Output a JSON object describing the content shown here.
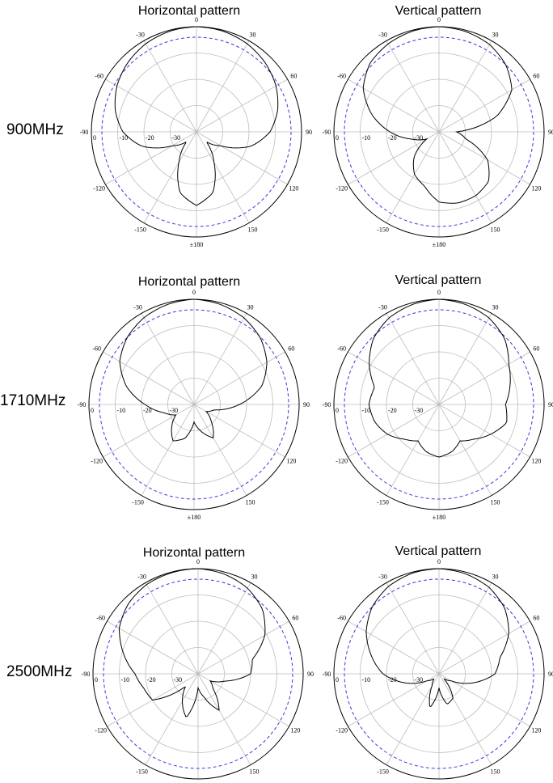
{
  "colors": {
    "pattern_line": "#000000",
    "reference_ring": "#3b3bde",
    "grid": "#bdbdbd"
  },
  "rows": [
    {
      "label": "900MHz"
    },
    {
      "label": "1710MHz"
    },
    {
      "label": "2500MHz"
    }
  ],
  "chart_data": [
    {
      "type": "polar-line",
      "frequency": "900MHz",
      "title": "Horizontal pattern",
      "angle_labels": [
        "0",
        "30",
        "60",
        "90",
        "120",
        "150",
        "±180",
        "-150",
        "-120",
        "-90",
        "-60",
        "-30"
      ],
      "radial_labels": [
        "0",
        "-10",
        "-20",
        "-30"
      ],
      "radial_range_db": [
        -30,
        0
      ],
      "reference_ring_db": -3,
      "series": [
        {
          "angles_deg": [
            0,
            15,
            30,
            45,
            60,
            75,
            90,
            105,
            120,
            135,
            150,
            165,
            180,
            195,
            210,
            225,
            240,
            255,
            270,
            285,
            300,
            315,
            330,
            345
          ],
          "gain_db": [
            0,
            -0.3,
            -1,
            -2.2,
            -3.8,
            -6,
            -9,
            -14,
            -22,
            -26,
            -20,
            -12,
            -9,
            -12,
            -20,
            -26,
            -22,
            -14,
            -9,
            -6,
            -3.8,
            -2.2,
            -1,
            -0.3
          ]
        }
      ]
    },
    {
      "type": "polar-line",
      "frequency": "900MHz",
      "title": "Vertical pattern",
      "angle_labels": [
        "0",
        "30",
        "60",
        "90",
        "120",
        "150",
        "±180",
        "-150",
        "-120",
        "-90",
        "-60",
        "-30"
      ],
      "radial_labels": [
        "0",
        "-10",
        "-20",
        "-30"
      ],
      "radial_range_db": [
        -30,
        0
      ],
      "reference_ring_db": -3,
      "series": [
        {
          "angles_deg": [
            0,
            15,
            30,
            45,
            60,
            75,
            90,
            105,
            120,
            135,
            150,
            165,
            180,
            195,
            210,
            225,
            240,
            255,
            270,
            285,
            300,
            315,
            330,
            345
          ],
          "gain_db": [
            0,
            -0.4,
            -1.2,
            -3,
            -6,
            -13,
            -25,
            -22,
            -14,
            -10,
            -9,
            -9,
            -10,
            -14,
            -16,
            -20,
            -26,
            -22,
            -16,
            -10,
            -5,
            -2.2,
            -1,
            -0.3
          ]
        }
      ]
    },
    {
      "type": "polar-line",
      "frequency": "1710MHz",
      "title": "Horizontal pattern",
      "angle_labels": [
        "0",
        "30",
        "60",
        "90",
        "120",
        "150",
        "±180",
        "-150",
        "-120",
        "-90",
        "-60",
        "-30"
      ],
      "radial_labels": [
        "0",
        "-10",
        "-20",
        "-30"
      ],
      "radial_range_db": [
        -30,
        0
      ],
      "reference_ring_db": -3,
      "series": [
        {
          "angles_deg": [
            0,
            15,
            30,
            45,
            60,
            75,
            90,
            105,
            120,
            135,
            150,
            165,
            180,
            195,
            210,
            225,
            240,
            255,
            270,
            285,
            300,
            315,
            330,
            345
          ],
          "gain_db": [
            0,
            -0.5,
            -1.5,
            -3.2,
            -6,
            -10,
            -17,
            -24,
            -26,
            -23,
            -19,
            -22,
            -25,
            -20,
            -18,
            -21,
            -24,
            -21,
            -16,
            -10,
            -5.5,
            -3,
            -1.4,
            -0.5
          ]
        }
      ]
    },
    {
      "type": "polar-line",
      "frequency": "1710MHz",
      "title": "Vertical pattern",
      "angle_labels": [
        "0",
        "30",
        "60",
        "90",
        "120",
        "150",
        "±180",
        "-150",
        "-120",
        "-90",
        "-60",
        "-30"
      ],
      "radial_labels": [
        "0",
        "-10",
        "-20",
        "-30"
      ],
      "radial_range_db": [
        -30,
        0
      ],
      "reference_ring_db": -3,
      "series": [
        {
          "angles_deg": [
            0,
            15,
            30,
            45,
            60,
            75,
            90,
            105,
            120,
            135,
            150,
            165,
            180,
            195,
            210,
            225,
            240,
            255,
            270,
            285,
            300,
            315,
            330,
            345
          ],
          "gain_db": [
            0,
            -0.5,
            -1.5,
            -3.5,
            -7,
            -9,
            -11,
            -10,
            -13,
            -16,
            -18,
            -16,
            -15,
            -16,
            -18,
            -16,
            -13,
            -11,
            -10,
            -11,
            -7,
            -3.5,
            -1.5,
            -0.5
          ]
        }
      ]
    },
    {
      "type": "polar-line",
      "frequency": "2500MHz",
      "title": "Horizontal pattern",
      "angle_labels": [
        "0",
        "30",
        "60",
        "90",
        "120",
        "150",
        "±180",
        "-150",
        "-120",
        "-90",
        "-60",
        "-30"
      ],
      "radial_labels": [
        "0",
        "-10",
        "-20",
        "-30"
      ],
      "radial_range_db": [
        -30,
        0
      ],
      "reference_ring_db": -3,
      "series": [
        {
          "angles_deg": [
            0,
            15,
            30,
            45,
            60,
            75,
            90,
            105,
            120,
            135,
            150,
            165,
            180,
            195,
            210,
            225,
            240,
            255,
            270,
            285,
            300,
            315,
            330,
            345
          ],
          "gain_db": [
            0,
            -0.6,
            -1.8,
            -4,
            -8,
            -14,
            -15,
            -22,
            -26,
            -24,
            -18,
            -23,
            -26,
            -17,
            -21,
            -25,
            -15,
            -14,
            -12,
            -8,
            -4,
            -1.8,
            -0.6,
            -0.2
          ]
        }
      ]
    },
    {
      "type": "polar-line",
      "frequency": "2500MHz",
      "title": "Vertical pattern",
      "angle_labels": [
        "0",
        "30",
        "60",
        "90",
        "120",
        "150",
        "±180",
        "-150",
        "-120",
        "-90",
        "-60",
        "-30"
      ],
      "radial_labels": [
        "0",
        "-10",
        "-20",
        "-30"
      ],
      "radial_range_db": [
        -30,
        0
      ],
      "reference_ring_db": -3,
      "series": [
        {
          "angles_deg": [
            0,
            15,
            30,
            45,
            60,
            75,
            90,
            105,
            120,
            135,
            150,
            165,
            180,
            195,
            210,
            225,
            240,
            255,
            270,
            285,
            300,
            315,
            330,
            345
          ],
          "gain_db": [
            0,
            -0.5,
            -1.5,
            -3.5,
            -7,
            -12,
            -14,
            -20,
            -26,
            -28,
            -22,
            -21,
            -26,
            -20,
            -26,
            -28,
            -26,
            -20,
            -14,
            -10,
            -6,
            -3,
            -1.2,
            -0.3
          ]
        }
      ]
    }
  ]
}
